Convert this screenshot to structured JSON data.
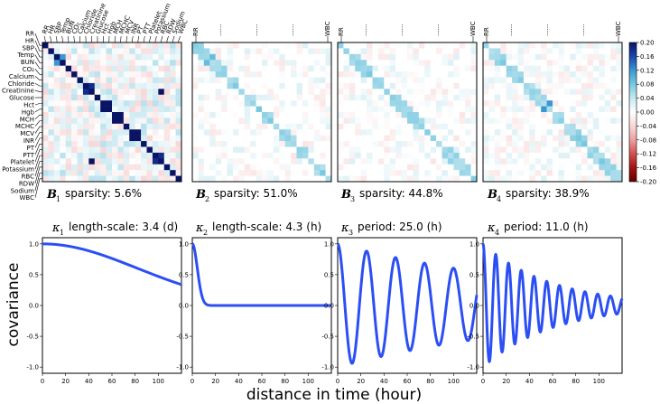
{
  "chart_data": {
    "heatmaps": {
      "type": "heatmap",
      "variables": [
        "RR",
        "HR",
        "SBP",
        "Temp",
        "BUN",
        "CO₂",
        "Calcium",
        "Chloride",
        "Creatinine",
        "Glucose",
        "Hct",
        "Hgb",
        "MCH",
        "MCHC",
        "MCV",
        "INR",
        "PT",
        "PTT",
        "Platelet",
        "Potassium",
        "RBC",
        "RDW",
        "Sodium",
        "WBC"
      ],
      "top_labels_panel1": [
        "RR",
        "HR",
        "SBP",
        "Temp",
        "BUN",
        "CO₂",
        "Calcium",
        "Chloride",
        "Creatinine",
        "Glucose",
        "Hct",
        "Hgb",
        "MCH",
        "MCHC",
        "MCV",
        "INR",
        "PT",
        "PTT",
        "Platelet",
        "Potassium",
        "RBC",
        "RDW",
        "Sodium",
        "WBC"
      ],
      "top_labels_other": [
        "RR",
        "......",
        "......",
        "......",
        "WBC"
      ],
      "panels": [
        {
          "symbol": "B",
          "index": "1",
          "caption": "sparsity: 5.6%"
        },
        {
          "symbol": "B",
          "index": "2",
          "caption": "sparsity: 51.0%"
        },
        {
          "symbol": "B",
          "index": "3",
          "caption": "sparsity: 44.8%"
        },
        {
          "symbol": "B",
          "index": "4",
          "caption": "sparsity: 38.9%"
        }
      ],
      "colorbar": {
        "min": -0.2,
        "max": 0.2,
        "ticks": [
          "0.20",
          "0.16",
          "0.12",
          "0.08",
          "0.04",
          "0.00",
          "-0.04",
          "-0.08",
          "-0.12",
          "-0.16",
          "-0.20"
        ]
      }
    },
    "kernels": {
      "type": "line",
      "xlabel": "distance in time (hour)",
      "ylabel": "covariance",
      "x_range": [
        0,
        120
      ],
      "y_range": [
        -1.1,
        1.1
      ],
      "x_ticks": [
        0,
        20,
        40,
        60,
        80,
        100
      ],
      "y_ticks": [
        "1.0",
        "0.5",
        "0.0",
        "-0.5",
        "-1.0"
      ],
      "series": [
        {
          "symbol": "κ",
          "index": "1",
          "caption": "length-scale: 3.4 (d)",
          "kind": "se",
          "lengthscale_hours": 81.6
        },
        {
          "symbol": "κ",
          "index": "2",
          "caption": "length-scale: 4.3 (h)",
          "kind": "se",
          "lengthscale_hours": 4.3
        },
        {
          "symbol": "κ",
          "index": "3",
          "caption": "period: 25.0 (h)",
          "kind": "periodic",
          "period_hours": 25.0,
          "decay": 0.005
        },
        {
          "symbol": "κ",
          "index": "4",
          "caption": "period: 11.0 (h)",
          "kind": "periodic",
          "period_hours": 11.0,
          "decay": 0.017
        }
      ],
      "line_color": "#2b4ff5"
    }
  }
}
